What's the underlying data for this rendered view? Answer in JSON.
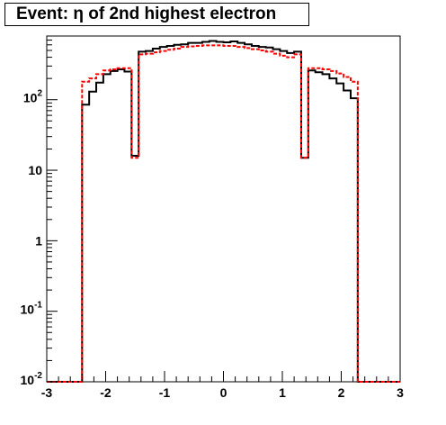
{
  "chart_data": {
    "type": "histogram",
    "title": "Event: η of 2nd highest electron",
    "xlim": [
      -3,
      3
    ],
    "ylim": [
      0.01,
      800
    ],
    "yscale": "log",
    "grid": false,
    "xticks": [
      "-3",
      "-2",
      "-1",
      "0",
      "1",
      "2",
      "3"
    ],
    "yticks": [
      {
        "value": 0.01,
        "base": "10",
        "exp": "-2"
      },
      {
        "value": 0.1,
        "base": "10",
        "exp": "-1"
      },
      {
        "value": 1,
        "base": "1",
        "exp": ""
      },
      {
        "value": 10,
        "base": "10",
        "exp": ""
      },
      {
        "value": 100,
        "base": "10",
        "exp": "2"
      }
    ],
    "bin_width": 0.12,
    "bins_low_edge": -3.0,
    "series": [
      {
        "style": "solid",
        "color": "#000000",
        "values": [
          0,
          0,
          0,
          0,
          0,
          85,
          130,
          175,
          230,
          255,
          270,
          250,
          16,
          480,
          490,
          530,
          560,
          580,
          600,
          610,
          640,
          640,
          660,
          680,
          660,
          650,
          670,
          640,
          610,
          580,
          560,
          550,
          520,
          490,
          460,
          480,
          15,
          260,
          245,
          230,
          200,
          170,
          135,
          105,
          0,
          0,
          0,
          0,
          0,
          0
        ]
      },
      {
        "style": "dashed",
        "color": "#ff0000",
        "values": [
          0,
          0,
          0,
          0,
          0,
          180,
          200,
          230,
          260,
          270,
          280,
          280,
          15,
          440,
          450,
          470,
          490,
          510,
          530,
          560,
          570,
          580,
          590,
          590,
          590,
          580,
          580,
          560,
          540,
          520,
          500,
          480,
          450,
          420,
          400,
          440,
          15,
          280,
          280,
          270,
          255,
          235,
          210,
          180,
          0,
          0,
          0,
          0,
          0,
          0
        ]
      }
    ]
  }
}
